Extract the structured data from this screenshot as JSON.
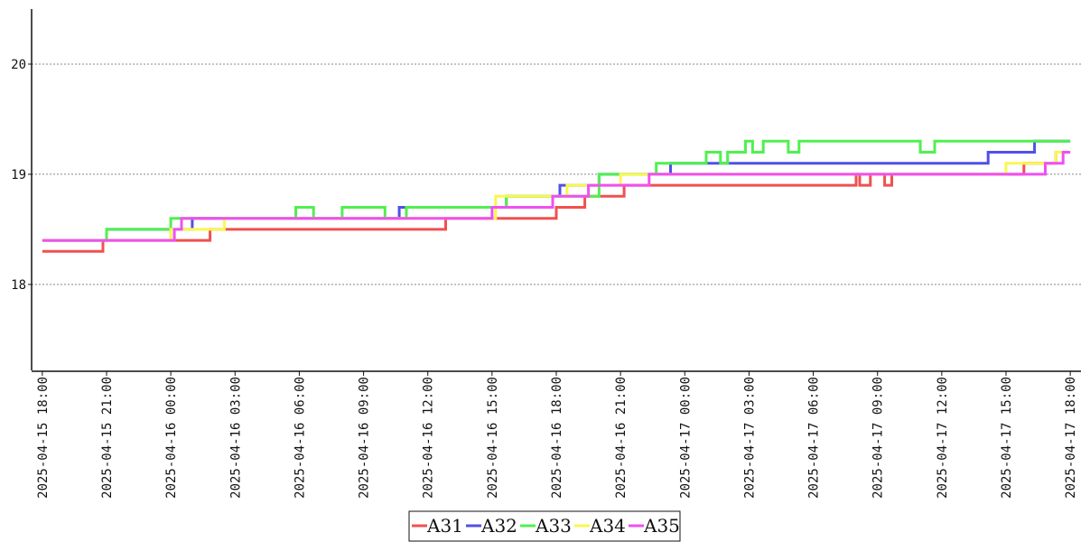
{
  "chart_data": {
    "type": "line",
    "step": true,
    "ylim": [
      17.22,
      20.5
    ],
    "xlim": [
      "2025-04-15 17:30",
      "2025-04-17 18:30"
    ],
    "yticks": [
      18,
      19,
      20
    ],
    "ytick_labels": [
      "18",
      "19",
      "20"
    ],
    "xticks": [
      "2025-04-15 18:00",
      "2025-04-15 21:00",
      "2025-04-16 00:00",
      "2025-04-16 03:00",
      "2025-04-16 06:00",
      "2025-04-16 09:00",
      "2025-04-16 12:00",
      "2025-04-16 15:00",
      "2025-04-16 18:00",
      "2025-04-16 21:00",
      "2025-04-17 00:00",
      "2025-04-17 03:00",
      "2025-04-17 06:00",
      "2025-04-17 09:00",
      "2025-04-17 12:00",
      "2025-04-17 15:00",
      "2025-04-17 18:00"
    ],
    "xtick_labels": [
      "2025-04-15 18:00",
      "2025-04-15 21:00",
      "2025-04-16 00:00",
      "2025-04-16 03:00",
      "2025-04-16 06:00",
      "2025-04-16 09:00",
      "2025-04-16 12:00",
      "2025-04-16 15:00",
      "2025-04-16 18:00",
      "2025-04-16 21:00",
      "2025-04-17 00:00",
      "2025-04-17 03:00",
      "2025-04-17 06:00",
      "2025-04-17 09:00",
      "2025-04-17 12:00",
      "2025-04-17 15:00",
      "2025-04-17 18:00"
    ],
    "grid": "horizontal-dotted",
    "legend_placement": "bottom-center",
    "series": [
      {
        "name": "A31",
        "color": "#f05050",
        "points": [
          [
            "2025-04-15 18:00",
            18.3
          ],
          [
            "2025-04-15 20:50",
            18.4
          ],
          [
            "2025-04-16 01:50",
            18.5
          ],
          [
            "2025-04-16 12:50",
            18.6
          ],
          [
            "2025-04-16 18:00",
            18.7
          ],
          [
            "2025-04-16 19:20",
            18.8
          ],
          [
            "2025-04-16 21:10",
            18.9
          ],
          [
            "2025-04-17 08:00",
            19.0
          ],
          [
            "2025-04-17 08:10",
            18.9
          ],
          [
            "2025-04-17 08:40",
            19.0
          ],
          [
            "2025-04-17 09:20",
            18.9
          ],
          [
            "2025-04-17 09:40",
            19.0
          ],
          [
            "2025-04-17 15:50",
            19.1
          ],
          [
            "2025-04-17 17:20",
            19.2
          ],
          [
            "2025-04-17 18:00",
            19.2
          ]
        ]
      },
      {
        "name": "A32",
        "color": "#5050e8",
        "points": [
          [
            "2025-04-15 18:00",
            18.4
          ],
          [
            "2025-04-15 21:00",
            18.5
          ],
          [
            "2025-04-16 01:00",
            18.6
          ],
          [
            "2025-04-16 10:40",
            18.7
          ],
          [
            "2025-04-16 15:40",
            18.8
          ],
          [
            "2025-04-16 18:10",
            18.9
          ],
          [
            "2025-04-16 20:00",
            19.0
          ],
          [
            "2025-04-16 23:20",
            19.1
          ],
          [
            "2025-04-17 14:10",
            19.2
          ],
          [
            "2025-04-17 16:20",
            19.3
          ],
          [
            "2025-04-17 18:00",
            19.3
          ]
        ]
      },
      {
        "name": "A33",
        "color": "#50f050",
        "points": [
          [
            "2025-04-15 18:00",
            18.4
          ],
          [
            "2025-04-15 21:00",
            18.5
          ],
          [
            "2025-04-16 00:00",
            18.6
          ],
          [
            "2025-04-16 05:50",
            18.7
          ],
          [
            "2025-04-16 06:40",
            18.6
          ],
          [
            "2025-04-16 08:00",
            18.7
          ],
          [
            "2025-04-16 10:00",
            18.6
          ],
          [
            "2025-04-16 11:00",
            18.7
          ],
          [
            "2025-04-16 15:40",
            18.8
          ],
          [
            "2025-04-16 20:00",
            19.0
          ],
          [
            "2025-04-16 22:40",
            19.1
          ],
          [
            "2025-04-17 01:00",
            19.2
          ],
          [
            "2025-04-17 01:40",
            19.1
          ],
          [
            "2025-04-17 02:00",
            19.2
          ],
          [
            "2025-04-17 02:50",
            19.3
          ],
          [
            "2025-04-17 03:10",
            19.2
          ],
          [
            "2025-04-17 03:40",
            19.3
          ],
          [
            "2025-04-17 04:50",
            19.2
          ],
          [
            "2025-04-17 05:20",
            19.3
          ],
          [
            "2025-04-17 11:00",
            19.2
          ],
          [
            "2025-04-17 11:40",
            19.3
          ],
          [
            "2025-04-17 18:00",
            19.3
          ]
        ]
      },
      {
        "name": "A34",
        "color": "#f8f850",
        "points": [
          [
            "2025-04-15 18:00",
            18.4
          ],
          [
            "2025-04-15 21:00",
            18.4
          ],
          [
            "2025-04-16 00:00",
            18.5
          ],
          [
            "2025-04-16 02:30",
            18.6
          ],
          [
            "2025-04-16 12:00",
            18.6
          ],
          [
            "2025-04-16 15:10",
            18.8
          ],
          [
            "2025-04-16 18:30",
            18.9
          ],
          [
            "2025-04-16 21:00",
            19.0
          ],
          [
            "2025-04-17 00:00",
            19.0
          ],
          [
            "2025-04-17 06:00",
            19.0
          ],
          [
            "2025-04-17 15:00",
            19.1
          ],
          [
            "2025-04-17 17:20",
            19.2
          ],
          [
            "2025-04-17 18:00",
            19.2
          ]
        ]
      },
      {
        "name": "A35",
        "color": "#f050f0",
        "points": [
          [
            "2025-04-15 18:00",
            18.4
          ],
          [
            "2025-04-16 00:10",
            18.5
          ],
          [
            "2025-04-16 00:30",
            18.6
          ],
          [
            "2025-04-16 12:00",
            18.6
          ],
          [
            "2025-04-16 15:00",
            18.7
          ],
          [
            "2025-04-16 17:50",
            18.8
          ],
          [
            "2025-04-16 19:30",
            18.9
          ],
          [
            "2025-04-16 22:20",
            19.0
          ],
          [
            "2025-04-17 09:40",
            19.0
          ],
          [
            "2025-04-17 16:50",
            19.1
          ],
          [
            "2025-04-17 17:40",
            19.2
          ],
          [
            "2025-04-17 18:00",
            19.2
          ]
        ]
      }
    ]
  }
}
